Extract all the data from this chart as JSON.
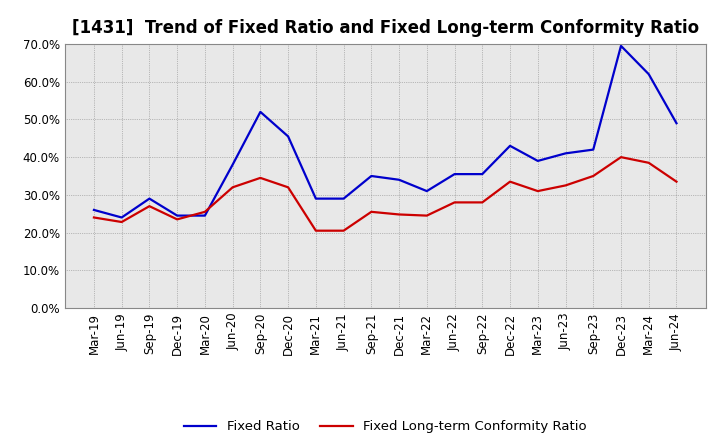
{
  "title": "[1431]  Trend of Fixed Ratio and Fixed Long-term Conformity Ratio",
  "x_labels": [
    "Mar-19",
    "Jun-19",
    "Sep-19",
    "Dec-19",
    "Mar-20",
    "Jun-20",
    "Sep-20",
    "Dec-20",
    "Mar-21",
    "Jun-21",
    "Sep-21",
    "Dec-21",
    "Mar-22",
    "Jun-22",
    "Sep-22",
    "Dec-22",
    "Mar-23",
    "Jun-23",
    "Sep-23",
    "Dec-23",
    "Mar-24",
    "Jun-24"
  ],
  "fixed_ratio": [
    0.26,
    0.24,
    0.29,
    0.245,
    0.245,
    0.38,
    0.52,
    0.455,
    0.29,
    0.29,
    0.35,
    0.34,
    0.31,
    0.355,
    0.355,
    0.43,
    0.39,
    0.41,
    0.42,
    0.695,
    0.62,
    0.49
  ],
  "fixed_lt_ratio": [
    0.24,
    0.228,
    0.27,
    0.235,
    0.255,
    0.32,
    0.345,
    0.32,
    0.205,
    0.205,
    0.255,
    0.248,
    0.245,
    0.28,
    0.28,
    0.335,
    0.31,
    0.325,
    0.35,
    0.4,
    0.385,
    0.335
  ],
  "fixed_ratio_color": "#0000cc",
  "fixed_lt_ratio_color": "#cc0000",
  "ylim": [
    0.0,
    0.7
  ],
  "yticks": [
    0.0,
    0.1,
    0.2,
    0.3,
    0.4,
    0.5,
    0.6,
    0.7
  ],
  "outer_background": "#ffffff",
  "plot_background": "#e8e8e8",
  "grid_color": "#aaaaaa",
  "legend_fixed": "Fixed Ratio",
  "legend_lt": "Fixed Long-term Conformity Ratio",
  "title_fontsize": 12,
  "axis_fontsize": 8.5,
  "legend_fontsize": 9.5,
  "line_width": 1.6
}
